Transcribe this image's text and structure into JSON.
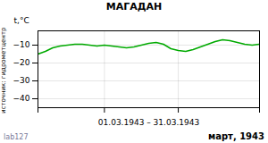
{
  "chart_data": {
    "type": "line",
    "title": "МАГАДАН",
    "ylabel": "t,°C",
    "xlabel": "01.03.1943 – 31.03.1943",
    "annotations": [
      "март, 1943",
      "lab127",
      "источник: гидрометцентр"
    ],
    "x": [
      1,
      2,
      3,
      4,
      5,
      6,
      7,
      8,
      9,
      10,
      11,
      12,
      13,
      14,
      15,
      16,
      17,
      18,
      19,
      20,
      21,
      22,
      23,
      24,
      25,
      26,
      27,
      28,
      29,
      30,
      31
    ],
    "values": [
      -15.0,
      -13.5,
      -11.5,
      -10.5,
      -10.0,
      -9.5,
      -9.5,
      -10.0,
      -10.5,
      -10.0,
      -10.5,
      -11.0,
      -11.5,
      -11.0,
      -10.0,
      -9.0,
      -8.5,
      -9.5,
      -12.0,
      -13.0,
      -13.5,
      -12.5,
      -11.0,
      -9.5,
      -8.0,
      -7.0,
      -7.5,
      -8.5,
      -9.5,
      -10.0,
      -9.5
    ],
    "color": "#00aa00",
    "xlim": [
      1,
      31
    ],
    "xticks": [
      1,
      10,
      20,
      31
    ],
    "ylim": [
      -45,
      -2
    ],
    "yticks": [
      -40,
      -30,
      -20,
      -10
    ],
    "grid": true,
    "tick_labels": "y"
  }
}
